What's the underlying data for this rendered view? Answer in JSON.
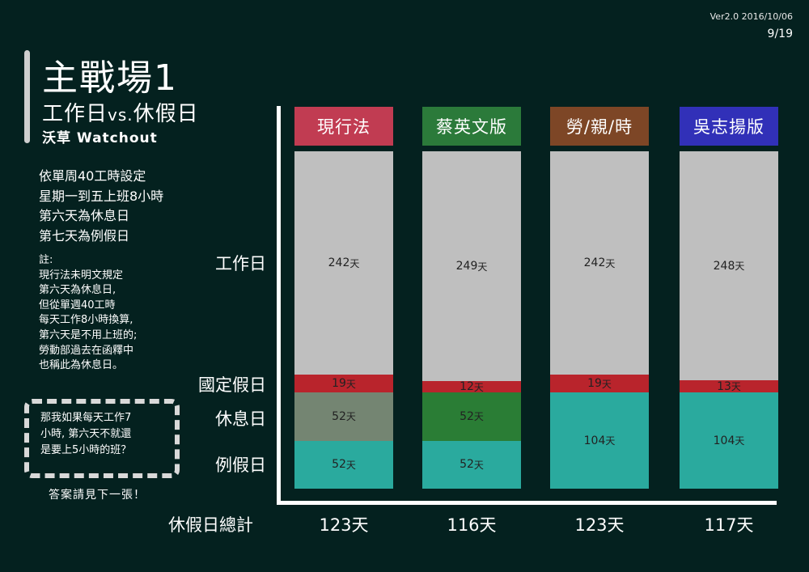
{
  "header": {
    "version": "Ver2.0 2016/10/06",
    "page": "9/19"
  },
  "title": "主戰場1",
  "subtitle_main": "工作日",
  "subtitle_vs": "vs.",
  "subtitle_end": "休假日",
  "source": "沃草 Watchout",
  "rules": [
    "依單周40工時設定",
    "星期一到五上班8小時",
    "第六天為休息日",
    "第七天為例假日"
  ],
  "note": [
    "註:",
    "現行法未明文規定",
    "第六天為休息日,",
    "但從單週40工時",
    "每天工作8小時換算,",
    "第六天是不用上班的;",
    "勞動部過去在函釋中",
    "也稱此為休息日。"
  ],
  "question": [
    "那我如果每天工作7",
    "小時, 第六天不就還",
    "是要上5小時的班？"
  ],
  "answer": "答案請見下一張！",
  "row_labels": {
    "work": "工作日",
    "holiday": "國定假日",
    "rest": "休息日",
    "regular": "例假日",
    "total": "休假日總計"
  },
  "unit": "天",
  "colors": {
    "work": "#bfbfbf",
    "holiday": "#b9242c",
    "regular": "#2aaa9e",
    "heads": [
      "#c13c52",
      "#2b7a3a",
      "#7d4626",
      "#3130b8"
    ],
    "rest": [
      "#748572",
      "#2a7d35",
      "#2aaa9e",
      "#2aaa9e"
    ]
  },
  "chart_data": {
    "type": "bar",
    "stacked": true,
    "categories": [
      "現行法",
      "蔡英文版",
      "勞/親/時",
      "吳志揚版"
    ],
    "series": [
      {
        "name": "工作日",
        "values": [
          242,
          249,
          242,
          248
        ]
      },
      {
        "name": "國定假日",
        "values": [
          19,
          12,
          19,
          13
        ]
      },
      {
        "name": "休息日",
        "values": [
          52,
          52,
          0,
          0
        ]
      },
      {
        "name": "例假日",
        "values": [
          52,
          52,
          104,
          104
        ]
      }
    ],
    "totals": [
      "123天",
      "116天",
      "123天",
      "117天"
    ],
    "value_labels": {
      "work": [
        "242",
        "249",
        "242",
        "248"
      ],
      "holiday": [
        "19",
        "12",
        "19",
        "13"
      ],
      "rest": [
        "52",
        "52",
        "",
        ""
      ],
      "regular": [
        "52",
        "52",
        "104",
        "104"
      ]
    }
  }
}
